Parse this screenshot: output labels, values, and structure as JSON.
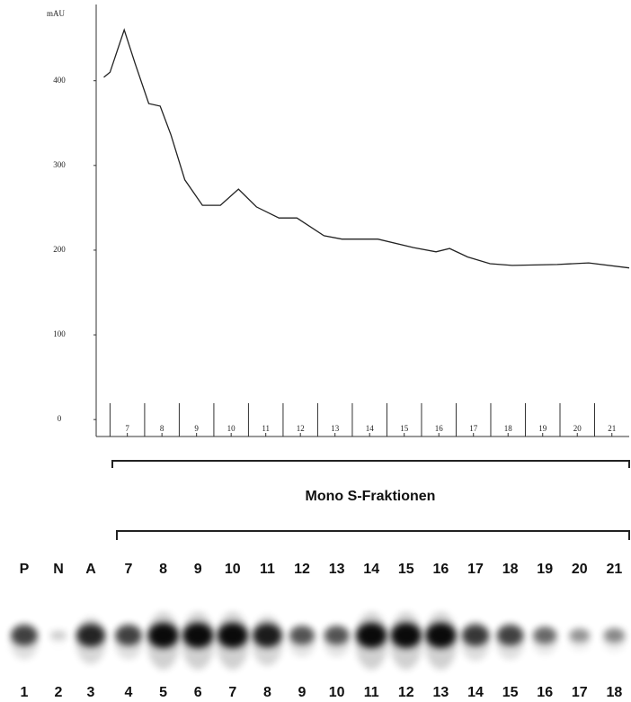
{
  "chart_data": {
    "type": "line",
    "y_label": "mAU",
    "x": [
      6.32,
      6.5,
      6.91,
      7.22,
      7.62,
      7.95,
      8.26,
      8.66,
      9.17,
      9.69,
      10.21,
      10.73,
      11.38,
      11.9,
      12.68,
      13.2,
      14.24,
      15.27,
      15.92,
      16.31,
      16.83,
      17.48,
      18.12,
      19.42,
      20.33,
      21.5
    ],
    "y": [
      404,
      410,
      460,
      421,
      373,
      370,
      336,
      283,
      253,
      253,
      272,
      251,
      238,
      238,
      217,
      213,
      213,
      203,
      198,
      202,
      192,
      184,
      182,
      183,
      185,
      179
    ],
    "color": "#222222",
    "xlim": [
      6.1,
      21.5
    ],
    "xticks": [
      7,
      8,
      9,
      10,
      11,
      12,
      13,
      14,
      15,
      16,
      17,
      18,
      19,
      20,
      21
    ],
    "ylim": [
      -20,
      490
    ],
    "yticks": [
      0,
      100,
      200,
      300,
      400
    ]
  },
  "gel": {
    "title": "Mono S-Fraktionen",
    "lanes": [
      {
        "label": "P",
        "number": "1",
        "intensity": 0.7
      },
      {
        "label": "N",
        "number": "2",
        "intensity": 0.05
      },
      {
        "label": "A",
        "number": "3",
        "intensity": 0.85
      },
      {
        "label": "7",
        "number": "4",
        "intensity": 0.7
      },
      {
        "label": "8",
        "number": "5",
        "intensity": 1
      },
      {
        "label": "9",
        "number": "6",
        "intensity": 1
      },
      {
        "label": "10",
        "number": "7",
        "intensity": 1
      },
      {
        "label": "11",
        "number": "8",
        "intensity": 0.9
      },
      {
        "label": "12",
        "number": "9",
        "intensity": 0.6
      },
      {
        "label": "13",
        "number": "10",
        "intensity": 0.6
      },
      {
        "label": "14",
        "number": "11",
        "intensity": 1
      },
      {
        "label": "15",
        "number": "12",
        "intensity": 1
      },
      {
        "label": "16",
        "number": "13",
        "intensity": 1
      },
      {
        "label": "17",
        "number": "14",
        "intensity": 0.75
      },
      {
        "label": "18",
        "number": "15",
        "intensity": 0.7
      },
      {
        "label": "19",
        "number": "16",
        "intensity": 0.5
      },
      {
        "label": "20",
        "number": "17",
        "intensity": 0.3
      },
      {
        "label": "21",
        "number": "18",
        "intensity": 0.35
      }
    ]
  }
}
